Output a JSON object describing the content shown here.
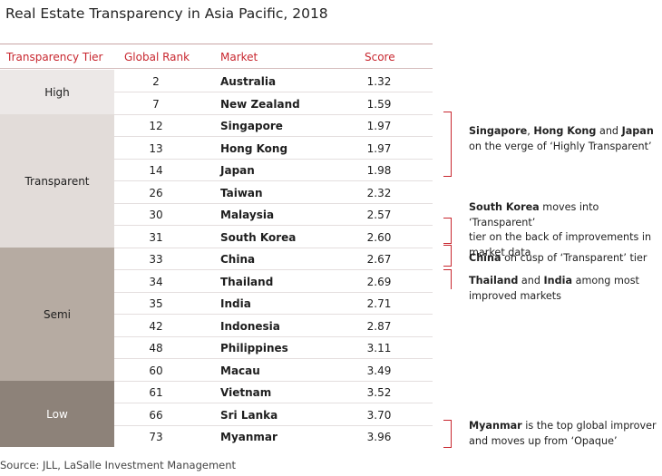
{
  "title": "Real Estate Transparency in Asia Pacific, 2018",
  "headers": {
    "tier": "Transparency Tier",
    "rank": "Global Rank",
    "market": "Market",
    "score": "Score"
  },
  "tiers": [
    {
      "label": "High",
      "color": "#ece8e7"
    },
    {
      "label": "Transparent",
      "color": "#e2dcd9"
    },
    {
      "label": "Semi",
      "color": "#b6aba2"
    },
    {
      "label": "Low",
      "color": "#8d8279"
    }
  ],
  "rows": [
    {
      "rank": "2",
      "market": "Australia",
      "score": "1.32"
    },
    {
      "rank": "7",
      "market": "New Zealand",
      "score": "1.59"
    },
    {
      "rank": "12",
      "market": "Singapore",
      "score": "1.97"
    },
    {
      "rank": "13",
      "market": "Hong Kong",
      "score": "1.97"
    },
    {
      "rank": "14",
      "market": "Japan",
      "score": "1.98"
    },
    {
      "rank": "26",
      "market": "Taiwan",
      "score": "2.32"
    },
    {
      "rank": "30",
      "market": "Malaysia",
      "score": "2.57"
    },
    {
      "rank": "31",
      "market": "South Korea",
      "score": "2.60"
    },
    {
      "rank": "33",
      "market": "China",
      "score": "2.67"
    },
    {
      "rank": "34",
      "market": "Thailand",
      "score": "2.69"
    },
    {
      "rank": "35",
      "market": "India",
      "score": "2.71"
    },
    {
      "rank": "42",
      "market": "Indonesia",
      "score": "2.87"
    },
    {
      "rank": "48",
      "market": "Philippines",
      "score": "3.11"
    },
    {
      "rank": "60",
      "market": "Macau",
      "score": "3.49"
    },
    {
      "rank": "61",
      "market": "Vietnam",
      "score": "3.52"
    },
    {
      "rank": "66",
      "market": "Sri Lanka",
      "score": "3.70"
    },
    {
      "rank": "73",
      "market": "Myanmar",
      "score": "3.96"
    }
  ],
  "notes": {
    "singapore": {
      "b1": "Singapore",
      "t1": ", ",
      "b2": "Hong Kong",
      "t2": " and ",
      "b3": "Japan",
      "t3": "on the verge of ‘Highly Transparent’"
    },
    "korea": {
      "b1": "South Korea",
      "t1": " moves into ‘Transparent’",
      "t2": "tier on the back of improvements in",
      "t3": "market data"
    },
    "china": {
      "b1": "China",
      "t1": " on cusp of ‘Transparent’ tier"
    },
    "thailand": {
      "b1": "Thailand",
      "t1": " and ",
      "b2": "India",
      "t2": " among most",
      "t3": "improved markets"
    },
    "myanmar": {
      "b1": "Myanmar",
      "t1": " is the top global improver",
      "t2": "and moves up from ‘Opaque’"
    }
  },
  "source": "Source: JLL, LaSalle Investment Management",
  "accent_color": "#c8272f"
}
